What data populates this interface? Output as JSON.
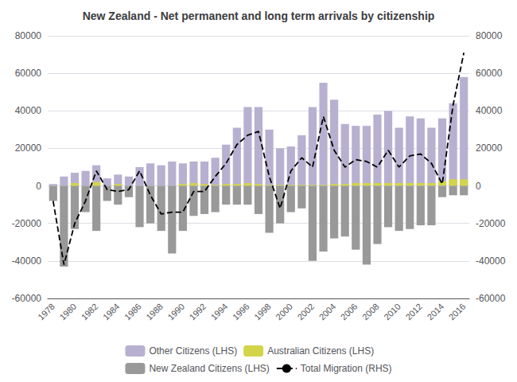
{
  "chart_data": {
    "type": "bar",
    "title": "New Zealand - Net permanent and long term arrivals by citizenship",
    "categories": [
      "1978",
      null,
      "1980",
      null,
      "1982",
      null,
      "1984",
      null,
      "1986",
      null,
      "1988",
      null,
      "1990",
      null,
      "1992",
      null,
      "1994",
      null,
      "1996",
      null,
      "1998",
      null,
      "2000",
      null,
      "2002",
      null,
      "2004",
      null,
      "2006",
      null,
      "2008",
      null,
      "2010",
      null,
      "2012",
      null,
      "2014",
      null,
      "2016"
    ],
    "series": [
      {
        "name": "Other Citizens (LHS)",
        "type": "bar",
        "color": "#b8b0d0",
        "values": [
          1000,
          5000,
          7000,
          8000,
          11000,
          4000,
          6000,
          5000,
          10000,
          12000,
          11000,
          13000,
          12000,
          13000,
          13000,
          15000,
          22000,
          31000,
          42000,
          42000,
          30000,
          20000,
          21000,
          27000,
          42000,
          55000,
          46000,
          33000,
          32000,
          32000,
          38000,
          40000,
          31000,
          37000,
          36000,
          31000,
          36000,
          44000,
          58000
        ]
      },
      {
        "name": "Australian Citizens (LHS)",
        "type": "bar",
        "color": "#d4d44a",
        "values": [
          0,
          0,
          1500,
          0,
          2000,
          0,
          1000,
          0,
          0,
          0,
          0,
          0,
          1000,
          1500,
          1000,
          500,
          1000,
          1000,
          1500,
          1000,
          500,
          500,
          500,
          500,
          500,
          500,
          1000,
          1000,
          1500,
          1500,
          1500,
          1500,
          1500,
          1500,
          1500,
          1500,
          2500,
          3500,
          3500
        ]
      },
      {
        "name": "New Zealand Citizens (LHS)",
        "type": "bar",
        "color": "#999999",
        "values": [
          -8000,
          -43000,
          -23000,
          -14000,
          -24000,
          -8000,
          -10000,
          -6000,
          -22000,
          -20000,
          -24000,
          -36000,
          -24000,
          -16000,
          -15000,
          -14000,
          -10000,
          -10000,
          -10000,
          -15000,
          -25000,
          -20000,
          -14000,
          -12000,
          -40000,
          -35000,
          -28000,
          -27000,
          -34000,
          -42000,
          -31000,
          -22000,
          -24000,
          -23000,
          -21000,
          -21000,
          -6000,
          -5000,
          -5000
        ]
      },
      {
        "name": "Total Migration (RHS)",
        "type": "line",
        "axis": "y2",
        "color": "#000000",
        "line_style": "dashed",
        "values": [
          -8000,
          -42000,
          -20000,
          -8000,
          8000,
          -2000,
          -3000,
          -2000,
          8000,
          -5000,
          -15000,
          -14000,
          -14000,
          -3000,
          -3000,
          5000,
          12000,
          22000,
          27000,
          29000,
          5000,
          -12000,
          8000,
          15000,
          10000,
          37000,
          19000,
          10000,
          14000,
          13000,
          10000,
          19000,
          10000,
          16000,
          17000,
          12000,
          1000,
          43000,
          71000
        ]
      }
    ],
    "ylim": [
      -60000,
      80000
    ],
    "yticks": [
      -60000,
      -40000,
      -20000,
      0,
      20000,
      40000,
      60000,
      80000
    ],
    "y2lim": [
      -60000,
      80000
    ],
    "y2ticks": [
      -60000,
      -40000,
      -20000,
      0,
      20000,
      40000,
      60000,
      80000
    ],
    "grid": true,
    "legend": "bottom"
  }
}
